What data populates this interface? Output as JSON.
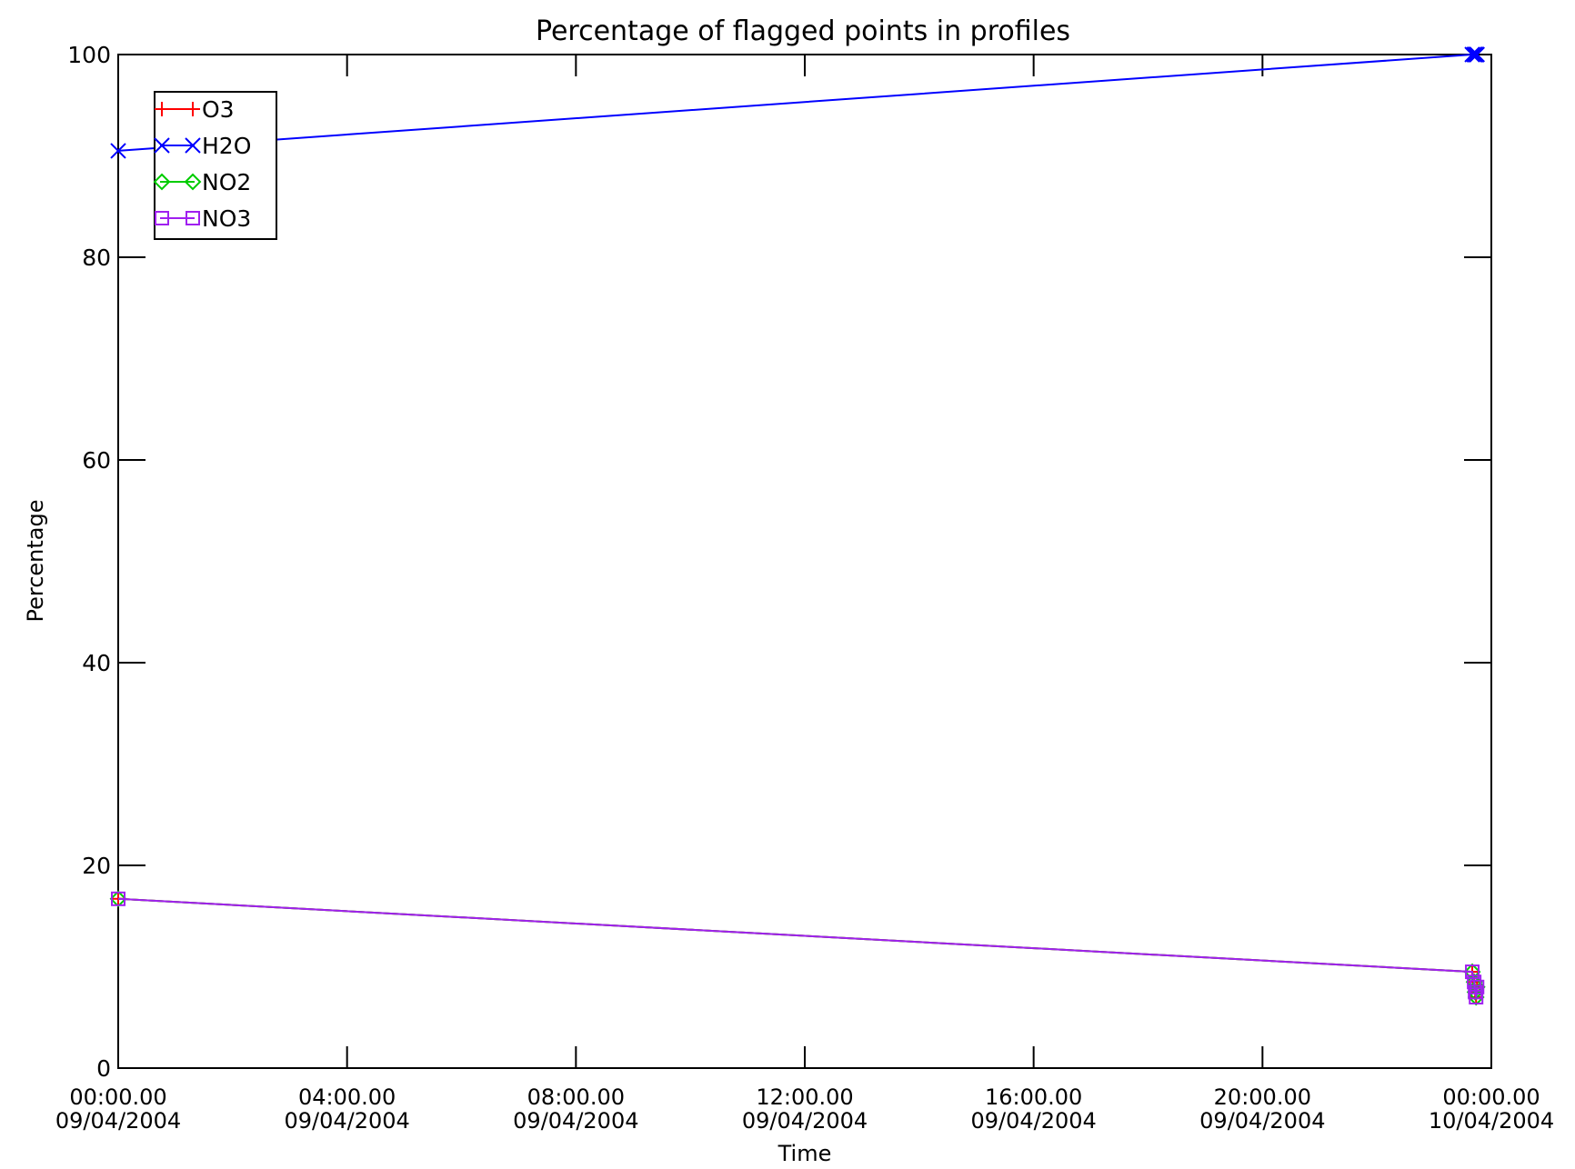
{
  "chart_data": {
    "type": "line",
    "title": "Percentage of flagged points in profiles",
    "xlabel": "Time",
    "ylabel": "Percentage",
    "ylim": [
      0,
      100
    ],
    "xlim": [
      "2004-04-09 00:00",
      "2004-04-10 00:00"
    ],
    "grid": false,
    "legend_position": "top-left",
    "y_ticks": [
      "0",
      "20",
      "40",
      "60",
      "80",
      "100"
    ],
    "y_tick_values": [
      0,
      20,
      40,
      60,
      80,
      100
    ],
    "x_ticks": [
      {
        "time": "00:00.00",
        "date": "09/04/2004",
        "value": "2004-04-09 00:00"
      },
      {
        "time": "04:00.00",
        "date": "09/04/2004",
        "value": "2004-04-09 04:00"
      },
      {
        "time": "08:00.00",
        "date": "09/04/2004",
        "value": "2004-04-09 08:00"
      },
      {
        "time": "12:00.00",
        "date": "09/04/2004",
        "value": "2004-04-09 12:00"
      },
      {
        "time": "16:00.00",
        "date": "09/04/2004",
        "value": "2004-04-09 16:00"
      },
      {
        "time": "20:00.00",
        "date": "09/04/2004",
        "value": "2004-04-09 20:00"
      },
      {
        "time": "00:00.00",
        "date": "10/04/2004",
        "value": "2004-04-10 00:00"
      }
    ],
    "series": [
      {
        "name": "O3",
        "color": "#ff0000",
        "marker": "plus",
        "points": [
          {
            "x": "2004-04-09 00:00",
            "y": 16.7
          },
          {
            "x": "2004-04-09 23:40",
            "y": 9.5
          },
          {
            "x": "2004-04-09 23:42",
            "y": 8.5
          },
          {
            "x": "2004-04-09 23:43",
            "y": 7.5
          },
          {
            "x": "2004-04-09 23:44",
            "y": 7.0
          },
          {
            "x": "2004-04-09 23:45",
            "y": 8.0
          }
        ]
      },
      {
        "name": "H2O",
        "color": "#0000ff",
        "marker": "x",
        "points": [
          {
            "x": "2004-04-09 00:00",
            "y": 90.5
          },
          {
            "x": "2004-04-09 23:40",
            "y": 100
          },
          {
            "x": "2004-04-09 23:42",
            "y": 100
          },
          {
            "x": "2004-04-09 23:43",
            "y": 100
          },
          {
            "x": "2004-04-09 23:44",
            "y": 100
          },
          {
            "x": "2004-04-09 23:45",
            "y": 100
          }
        ]
      },
      {
        "name": "NO2",
        "color": "#00cc00",
        "marker": "diamond",
        "points": [
          {
            "x": "2004-04-09 00:00",
            "y": 16.7
          },
          {
            "x": "2004-04-09 23:40",
            "y": 9.5
          },
          {
            "x": "2004-04-09 23:42",
            "y": 8.5
          },
          {
            "x": "2004-04-09 23:43",
            "y": 7.5
          },
          {
            "x": "2004-04-09 23:44",
            "y": 7.0
          },
          {
            "x": "2004-04-09 23:45",
            "y": 8.0
          }
        ]
      },
      {
        "name": "NO3",
        "color": "#a020f0",
        "marker": "square",
        "points": [
          {
            "x": "2004-04-09 00:00",
            "y": 16.7
          },
          {
            "x": "2004-04-09 23:40",
            "y": 9.5
          },
          {
            "x": "2004-04-09 23:42",
            "y": 8.5
          },
          {
            "x": "2004-04-09 23:43",
            "y": 7.5
          },
          {
            "x": "2004-04-09 23:44",
            "y": 7.0
          },
          {
            "x": "2004-04-09 23:45",
            "y": 8.0
          }
        ]
      }
    ]
  }
}
